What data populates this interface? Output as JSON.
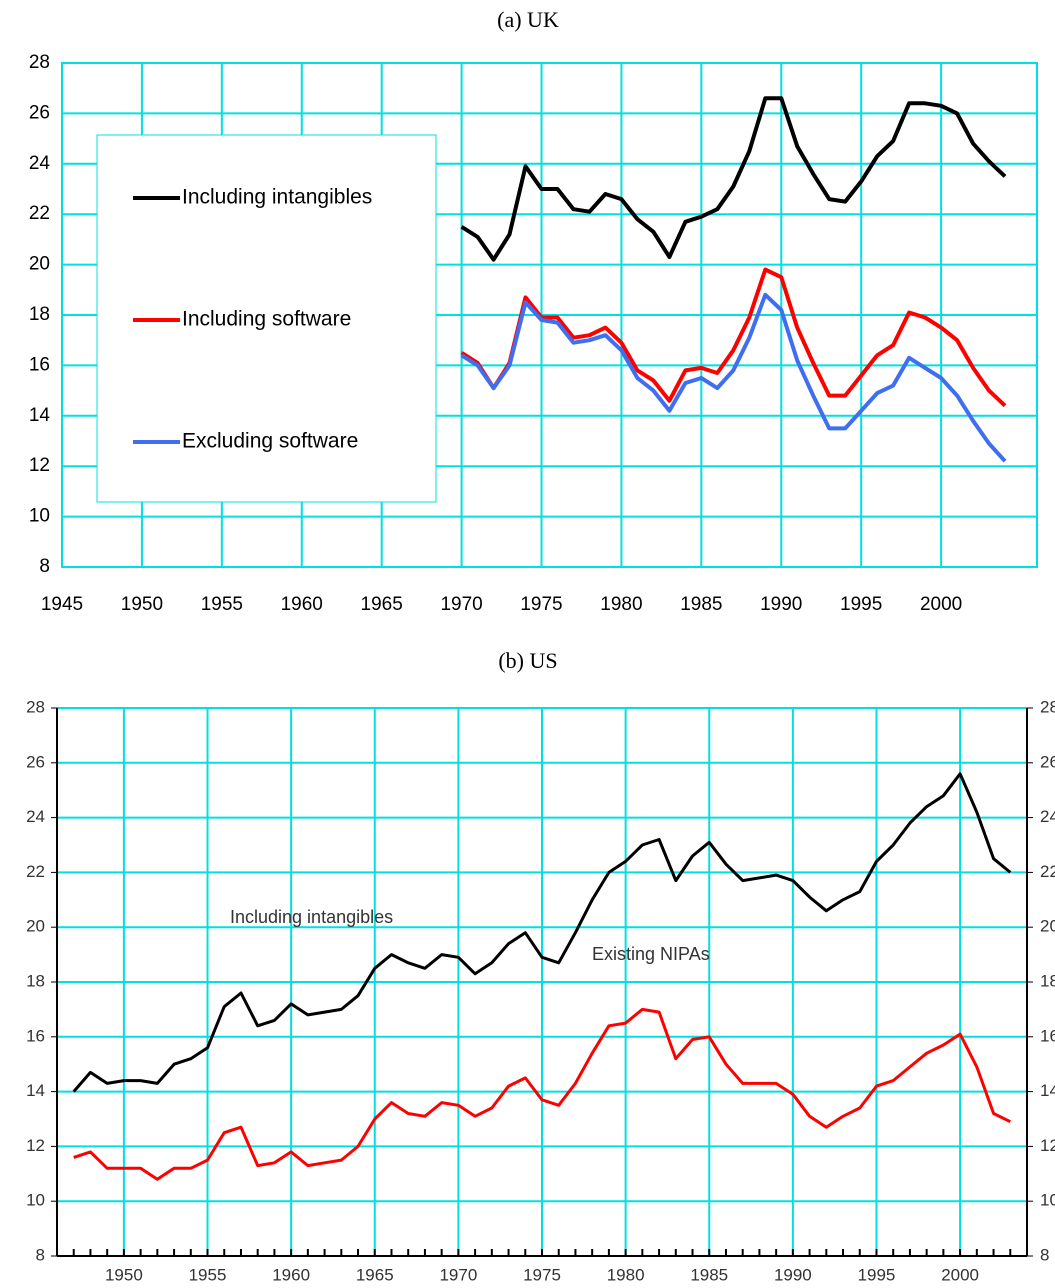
{
  "chart_data": [
    {
      "type": "line",
      "title": "(a) UK",
      "x": [
        1970,
        1971,
        1972,
        1973,
        1974,
        1975,
        1976,
        1977,
        1978,
        1979,
        1980,
        1981,
        1982,
        1983,
        1984,
        1985,
        1986,
        1987,
        1988,
        1989,
        1990,
        1991,
        1992,
        1993,
        1994,
        1995,
        1996,
        1997,
        1998,
        1999,
        2000,
        2001,
        2002,
        2003,
        2004
      ],
      "series": [
        {
          "name": "Including intangibles",
          "color": "#000000",
          "values": [
            21.5,
            21.1,
            20.2,
            21.2,
            23.9,
            23.0,
            23.0,
            22.2,
            22.1,
            22.8,
            22.6,
            21.8,
            21.3,
            20.3,
            21.7,
            21.9,
            22.2,
            23.1,
            24.5,
            26.6,
            26.6,
            24.7,
            23.6,
            22.6,
            22.5,
            23.3,
            24.3,
            24.9,
            26.4,
            26.4,
            26.3,
            26.0,
            24.8,
            24.1,
            23.5
          ]
        },
        {
          "name": "Including software",
          "color": "#ff0000",
          "values": [
            16.5,
            16.1,
            15.1,
            16.1,
            18.7,
            17.9,
            17.9,
            17.1,
            17.2,
            17.5,
            16.9,
            15.8,
            15.4,
            14.6,
            15.8,
            15.9,
            15.7,
            16.6,
            17.9,
            19.8,
            19.5,
            17.5,
            16.1,
            14.8,
            14.8,
            15.6,
            16.4,
            16.8,
            18.1,
            17.9,
            17.5,
            17.0,
            15.9,
            15.0,
            14.4
          ]
        },
        {
          "name": "Excluding software",
          "color": "#3f6ff0",
          "values": [
            16.4,
            16.0,
            15.1,
            16.0,
            18.5,
            17.8,
            17.7,
            16.9,
            17.0,
            17.2,
            16.6,
            15.5,
            15.0,
            14.2,
            15.3,
            15.5,
            15.1,
            15.8,
            17.1,
            18.8,
            18.2,
            16.2,
            14.8,
            13.5,
            13.5,
            14.2,
            14.9,
            15.2,
            16.3,
            15.9,
            15.5,
            14.8,
            13.8,
            12.9,
            12.2
          ]
        }
      ],
      "xlim": [
        1945,
        2006
      ],
      "ylim": [
        8,
        28
      ],
      "xticks": [
        1945,
        1950,
        1955,
        1960,
        1965,
        1970,
        1975,
        1980,
        1985,
        1990,
        1995,
        2000
      ],
      "yticks": [
        8,
        10,
        12,
        14,
        16,
        18,
        20,
        22,
        24,
        26,
        28
      ],
      "grid": true,
      "legend": "left"
    },
    {
      "type": "line",
      "title": "(b) US",
      "x": [
        1947,
        1948,
        1949,
        1950,
        1951,
        1952,
        1953,
        1954,
        1955,
        1956,
        1957,
        1958,
        1959,
        1960,
        1961,
        1962,
        1963,
        1964,
        1965,
        1966,
        1967,
        1968,
        1969,
        1970,
        1971,
        1972,
        1973,
        1974,
        1975,
        1976,
        1977,
        1978,
        1979,
        1980,
        1981,
        1982,
        1983,
        1984,
        1985,
        1986,
        1987,
        1988,
        1989,
        1990,
        1991,
        1992,
        1993,
        1994,
        1995,
        1996,
        1997,
        1998,
        1999,
        2000,
        2001,
        2002,
        2003
      ],
      "series": [
        {
          "name": "Including intangibles",
          "color": "#000000",
          "values": [
            14.0,
            14.7,
            14.3,
            14.4,
            14.4,
            14.3,
            15.0,
            15.2,
            15.6,
            17.1,
            17.6,
            16.4,
            16.6,
            17.2,
            16.8,
            16.9,
            17.0,
            17.5,
            18.5,
            19.0,
            18.7,
            18.5,
            19.0,
            18.9,
            18.3,
            18.7,
            19.4,
            19.8,
            18.9,
            18.7,
            19.8,
            21.0,
            22.0,
            22.4,
            23.0,
            23.2,
            21.7,
            22.6,
            23.1,
            22.3,
            21.7,
            21.8,
            21.9,
            21.7,
            21.1,
            20.6,
            21.0,
            21.3,
            22.4,
            23.0,
            23.8,
            24.4,
            24.8,
            25.6,
            24.2,
            22.5,
            22.0
          ]
        },
        {
          "name": "Existing NIPAs",
          "color": "#ff0000",
          "values": [
            11.6,
            11.8,
            11.2,
            11.2,
            11.2,
            10.8,
            11.2,
            11.2,
            11.5,
            12.5,
            12.7,
            11.3,
            11.4,
            11.8,
            11.3,
            11.4,
            11.5,
            12.0,
            13.0,
            13.6,
            13.2,
            13.1,
            13.6,
            13.5,
            13.1,
            13.4,
            14.2,
            14.5,
            13.7,
            13.5,
            14.3,
            15.4,
            16.4,
            16.5,
            17.0,
            16.9,
            15.2,
            15.9,
            16.0,
            15.0,
            14.3,
            14.3,
            14.3,
            13.9,
            13.1,
            12.7,
            13.1,
            13.4,
            14.2,
            14.4,
            14.9,
            15.4,
            15.7,
            16.1,
            14.9,
            13.2,
            12.9
          ]
        }
      ],
      "xlim": [
        1946,
        2004
      ],
      "ylim": [
        8,
        28
      ],
      "xticks": [
        1950,
        1955,
        1960,
        1965,
        1970,
        1975,
        1980,
        1985,
        1990,
        1995,
        2000
      ],
      "yticks": [
        8,
        10,
        12,
        14,
        16,
        18,
        20,
        22,
        24,
        26,
        28
      ],
      "grid": true,
      "legend": "inline"
    }
  ]
}
